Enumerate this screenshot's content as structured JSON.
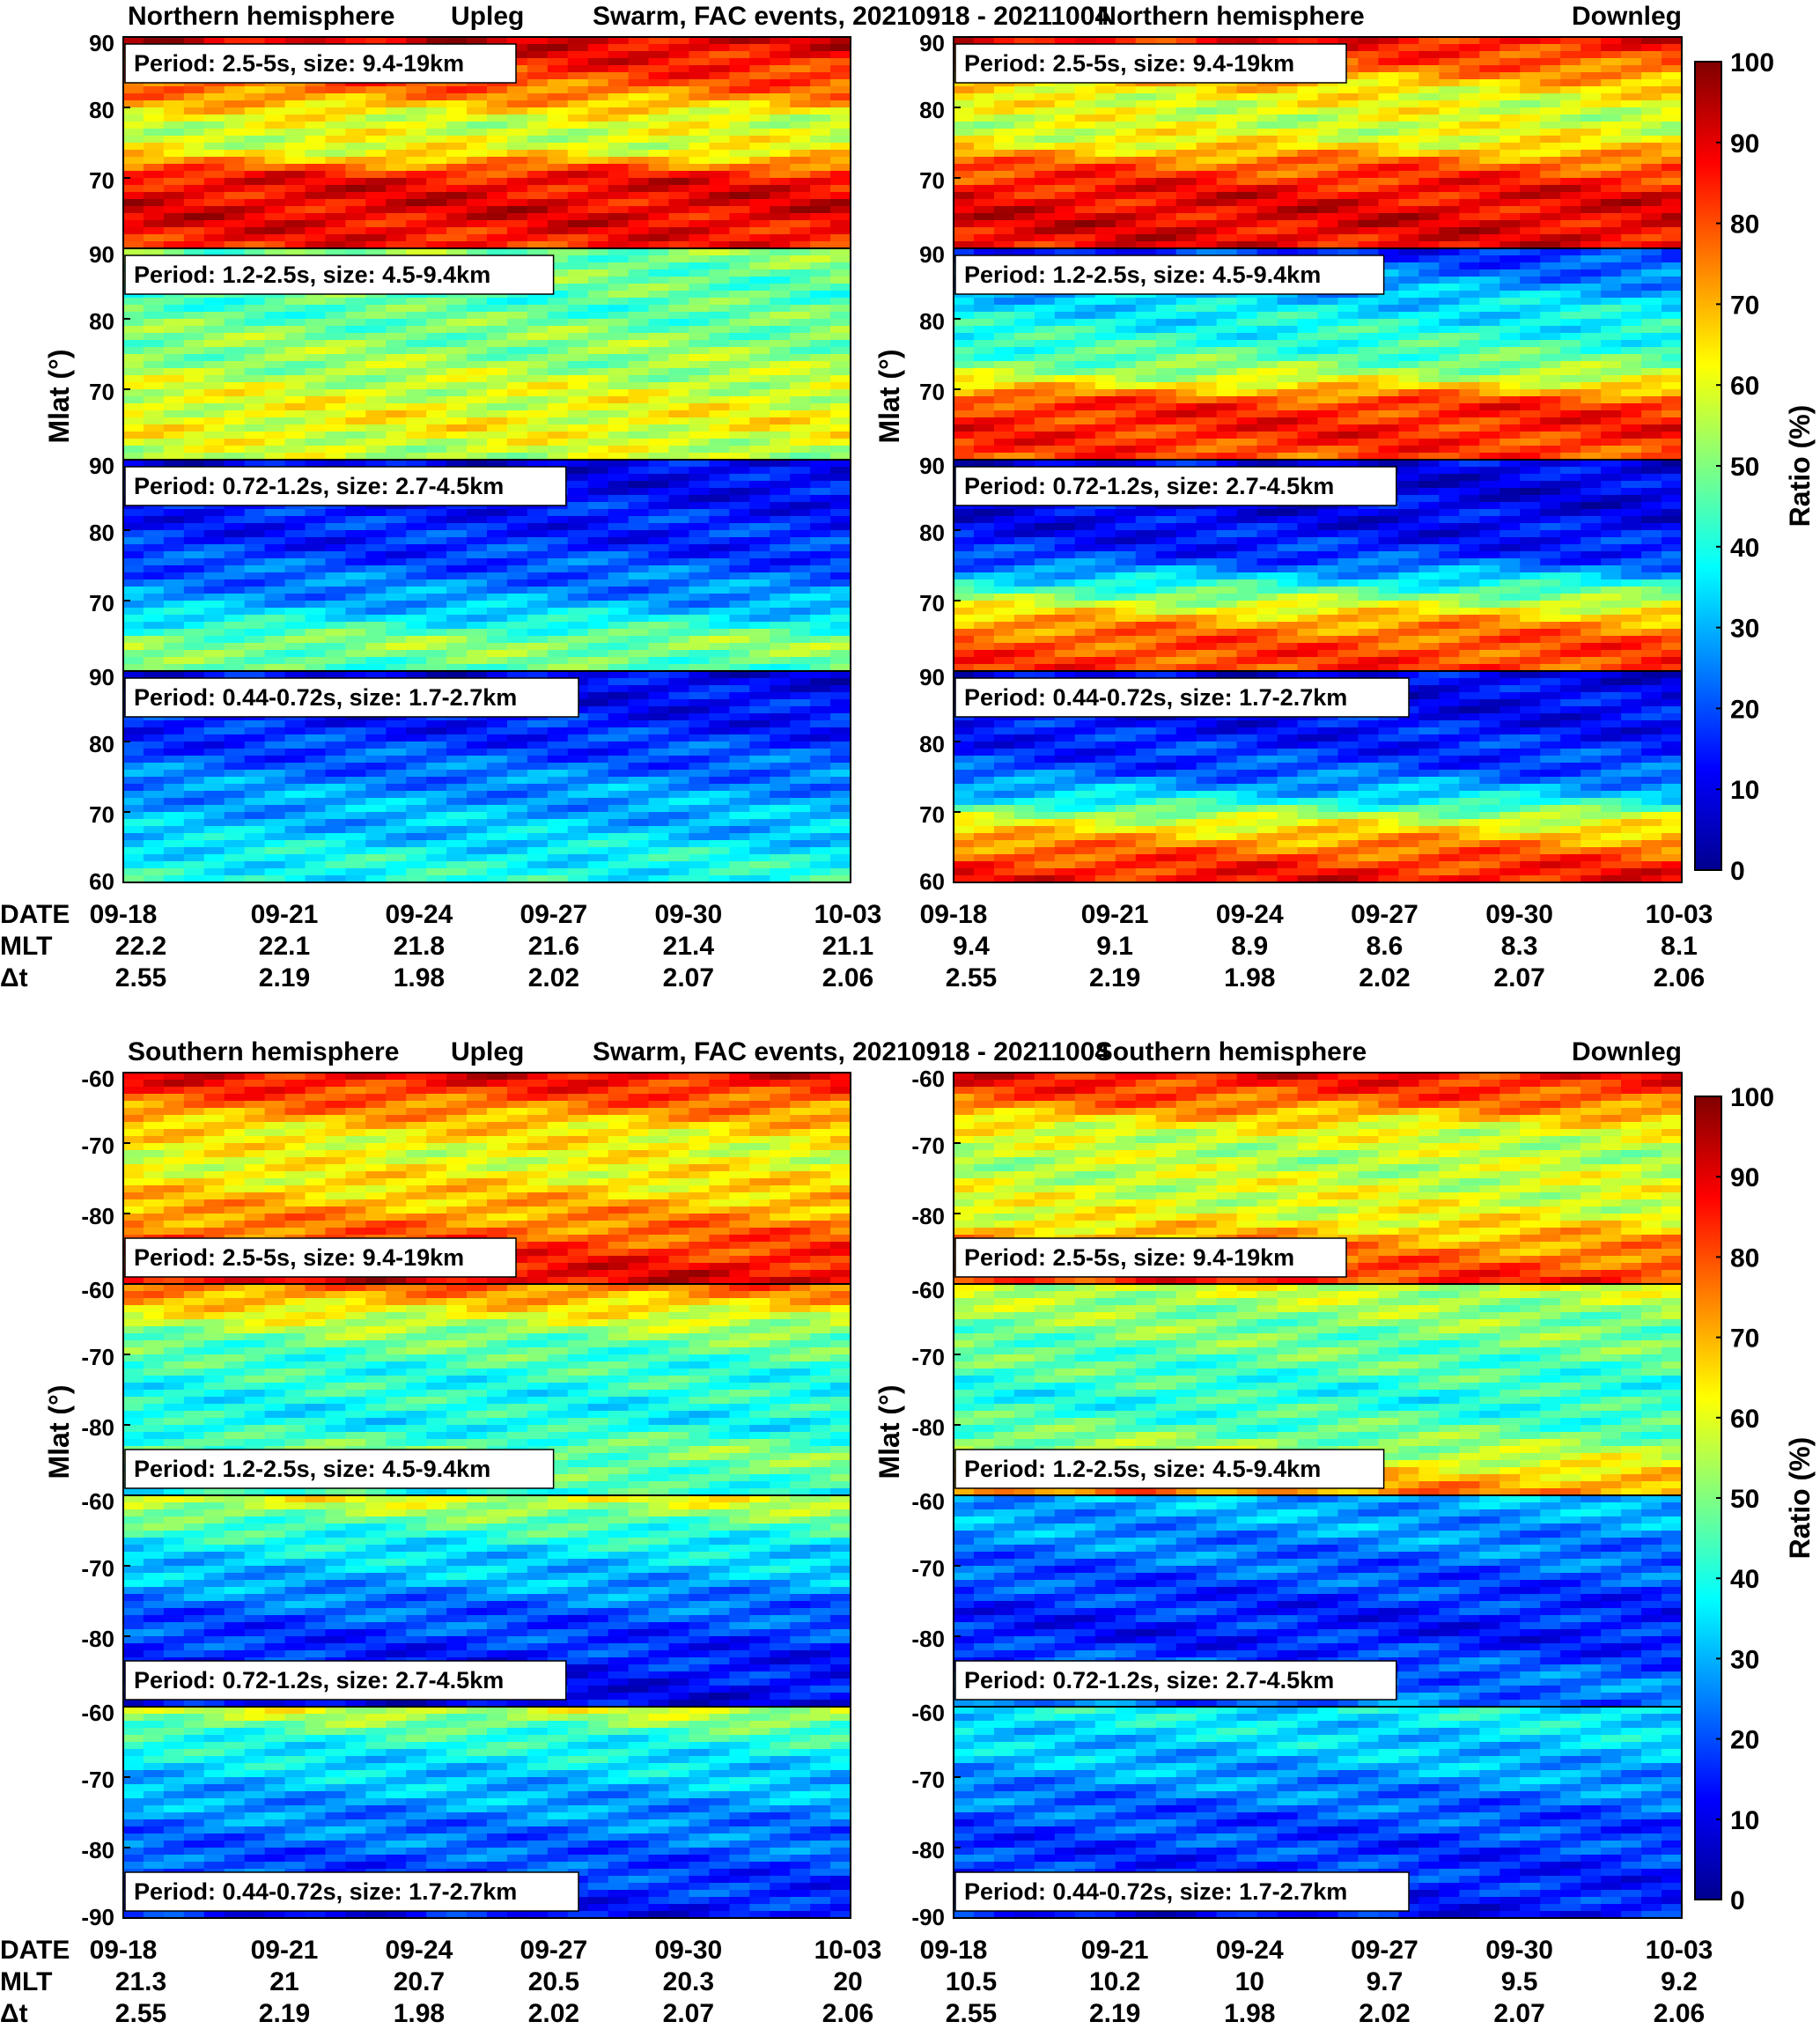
{
  "figure": {
    "title": "Swarm, FAC events, 20210918 - 20211004",
    "ylabel": "Mlat (°)",
    "colorbar": {
      "label": "Ratio (%)",
      "ticks": [
        0,
        10,
        20,
        30,
        40,
        50,
        60,
        70,
        80,
        90,
        100
      ]
    },
    "row_labels": [
      "DATE",
      "MLT",
      "Δt"
    ],
    "dates": [
      "09-18",
      "09-21",
      "09-24",
      "09-27",
      "09-30",
      "10-03"
    ],
    "dt": [
      "2.55",
      "2.19",
      "1.98",
      "2.02",
      "2.07",
      "2.06"
    ],
    "period_labels": [
      "Period: 2.5-5s, size: 9.4-19km",
      "Period: 1.2-2.5s, size: 4.5-9.4km",
      "Period: 0.72-1.2s, size: 2.7-4.5km",
      "Period: 0.44-0.72s, size: 1.7-2.7km"
    ],
    "colormap": [
      "#00008f",
      "#0000ff",
      "#0080ff",
      "#00ffff",
      "#80ff80",
      "#ffff00",
      "#ff8000",
      "#ff0000",
      "#800000"
    ]
  },
  "chart_data": [
    {
      "type": "heatmap",
      "hemisphere": "Northern hemisphere",
      "leg": "Upleg",
      "mlt": [
        "22.2",
        "22.1",
        "21.8",
        "21.6",
        "21.4",
        "21.1"
      ],
      "yticks": [
        "90",
        "80",
        "70",
        "60"
      ],
      "ylim": [
        60,
        90
      ],
      "panels": [
        {
          "period": "2.5-5s",
          "size": "9.4-19km",
          "profile": [
            [
              60,
              85
            ],
            [
              65,
              90
            ],
            [
              70,
              88
            ],
            [
              74,
              60
            ],
            [
              78,
              58
            ],
            [
              82,
              75
            ],
            [
              86,
              85
            ],
            [
              90,
              92
            ]
          ]
        },
        {
          "period": "1.2-2.5s",
          "size": "4.5-9.4km",
          "profile": [
            [
              60,
              55
            ],
            [
              65,
              62
            ],
            [
              70,
              58
            ],
            [
              74,
              52
            ],
            [
              78,
              50
            ],
            [
              82,
              45
            ],
            [
              86,
              48
            ],
            [
              90,
              50
            ]
          ]
        },
        {
          "period": "0.72-1.2s",
          "size": "2.7-4.5km",
          "profile": [
            [
              60,
              45
            ],
            [
              64,
              52
            ],
            [
              67,
              38
            ],
            [
              70,
              28
            ],
            [
              74,
              22
            ],
            [
              78,
              16
            ],
            [
              82,
              15
            ],
            [
              86,
              12
            ],
            [
              90,
              10
            ]
          ]
        },
        {
          "period": "0.44-0.72s",
          "size": "1.7-2.7km",
          "profile": [
            [
              60,
              40
            ],
            [
              64,
              38
            ],
            [
              67,
              32
            ],
            [
              70,
              30
            ],
            [
              74,
              26
            ],
            [
              78,
              20
            ],
            [
              82,
              15
            ],
            [
              86,
              12
            ],
            [
              90,
              10
            ]
          ]
        }
      ]
    },
    {
      "type": "heatmap",
      "hemisphere": "Northern hemisphere",
      "leg": "Downleg",
      "mlt": [
        "9.4",
        "9.1",
        "8.9",
        "8.6",
        "8.3",
        "8.1"
      ],
      "yticks": [
        "90",
        "80",
        "70",
        "60"
      ],
      "ylim": [
        60,
        90
      ],
      "panels": [
        {
          "period": "2.5-5s",
          "size": "9.4-19km",
          "profile": [
            [
              60,
              88
            ],
            [
              64,
              90
            ],
            [
              68,
              88
            ],
            [
              72,
              78
            ],
            [
              75,
              62
            ],
            [
              78,
              58
            ],
            [
              82,
              62
            ],
            [
              86,
              78
            ],
            [
              90,
              88
            ]
          ]
        },
        {
          "period": "1.2-2.5s",
          "size": "4.5-9.4km",
          "profile": [
            [
              60,
              80
            ],
            [
              64,
              85
            ],
            [
              68,
              83
            ],
            [
              72,
              55
            ],
            [
              75,
              45
            ],
            [
              78,
              40
            ],
            [
              82,
              35
            ],
            [
              86,
              25
            ],
            [
              90,
              15
            ]
          ]
        },
        {
          "period": "0.72-1.2s",
          "size": "2.7-4.5km",
          "profile": [
            [
              60,
              82
            ],
            [
              64,
              80
            ],
            [
              67,
              72
            ],
            [
              70,
              55
            ],
            [
              73,
              35
            ],
            [
              76,
              18
            ],
            [
              80,
              12
            ],
            [
              84,
              10
            ],
            [
              90,
              10
            ]
          ]
        },
        {
          "period": "0.44-0.72s",
          "size": "1.7-2.7km",
          "profile": [
            [
              60,
              88
            ],
            [
              63,
              82
            ],
            [
              66,
              72
            ],
            [
              69,
              58
            ],
            [
              72,
              35
            ],
            [
              76,
              20
            ],
            [
              80,
              15
            ],
            [
              84,
              12
            ],
            [
              90,
              10
            ]
          ]
        }
      ]
    },
    {
      "type": "heatmap",
      "hemisphere": "Southern hemisphere",
      "leg": "Upleg",
      "mlt": [
        "21.3",
        "21",
        "20.7",
        "20.5",
        "20.3",
        "20"
      ],
      "yticks": [
        "-60",
        "-70",
        "-80",
        "-90"
      ],
      "ylim": [
        -90,
        -60
      ],
      "panels": [
        {
          "period": "2.5-5s",
          "size": "9.4-19km",
          "profile": [
            [
              -60,
              90
            ],
            [
              -64,
              78
            ],
            [
              -68,
              65
            ],
            [
              -72,
              60
            ],
            [
              -76,
              65
            ],
            [
              -80,
              72
            ],
            [
              -84,
              80
            ],
            [
              -88,
              88
            ],
            [
              -90,
              90
            ]
          ]
        },
        {
          "period": "1.2-2.5s",
          "size": "4.5-9.4km",
          "profile": [
            [
              -60,
              78
            ],
            [
              -64,
              62
            ],
            [
              -68,
              48
            ],
            [
              -72,
              42
            ],
            [
              -76,
              40
            ],
            [
              -80,
              38
            ],
            [
              -84,
              50
            ],
            [
              -88,
              45
            ],
            [
              -90,
              40
            ]
          ]
        },
        {
          "period": "0.72-1.2s",
          "size": "2.7-4.5km",
          "profile": [
            [
              -60,
              62
            ],
            [
              -64,
              45
            ],
            [
              -68,
              35
            ],
            [
              -72,
              30
            ],
            [
              -76,
              22
            ],
            [
              -80,
              18
            ],
            [
              -84,
              14
            ],
            [
              -88,
              12
            ],
            [
              -90,
              10
            ]
          ]
        },
        {
          "period": "0.44-0.72s",
          "size": "1.7-2.7km",
          "profile": [
            [
              -60,
              60
            ],
            [
              -64,
              42
            ],
            [
              -68,
              35
            ],
            [
              -72,
              30
            ],
            [
              -76,
              25
            ],
            [
              -80,
              22
            ],
            [
              -84,
              18
            ],
            [
              -88,
              15
            ],
            [
              -90,
              12
            ]
          ]
        }
      ]
    },
    {
      "type": "heatmap",
      "hemisphere": "Southern hemisphere",
      "leg": "Downleg",
      "mlt": [
        "10.5",
        "10.2",
        "10",
        "9.7",
        "9.5",
        "9.2"
      ],
      "yticks": [
        "-60",
        "-70",
        "-80",
        "-90"
      ],
      "ylim": [
        -90,
        -60
      ],
      "panels": [
        {
          "period": "2.5-5s",
          "size": "9.4-19km",
          "profile": [
            [
              -60,
              88
            ],
            [
              -64,
              78
            ],
            [
              -68,
              60
            ],
            [
              -72,
              55
            ],
            [
              -76,
              58
            ],
            [
              -80,
              60
            ],
            [
              -84,
              72
            ],
            [
              -88,
              80
            ],
            [
              -90,
              85
            ]
          ]
        },
        {
          "period": "1.2-2.5s",
          "size": "4.5-9.4km",
          "profile": [
            [
              -60,
              58
            ],
            [
              -64,
              52
            ],
            [
              -68,
              48
            ],
            [
              -72,
              45
            ],
            [
              -76,
              40
            ],
            [
              -80,
              45
            ],
            [
              -84,
              55
            ],
            [
              -88,
              70
            ],
            [
              -90,
              75
            ]
          ]
        },
        {
          "period": "0.72-1.2s",
          "size": "2.7-4.5km",
          "profile": [
            [
              -60,
              30
            ],
            [
              -64,
              28
            ],
            [
              -68,
              24
            ],
            [
              -72,
              20
            ],
            [
              -76,
              16
            ],
            [
              -80,
              14
            ],
            [
              -84,
              20
            ],
            [
              -88,
              25
            ],
            [
              -90,
              22
            ]
          ]
        },
        {
          "period": "0.44-0.72s",
          "size": "1.7-2.7km",
          "profile": [
            [
              -60,
              38
            ],
            [
              -64,
              34
            ],
            [
              -68,
              30
            ],
            [
              -72,
              25
            ],
            [
              -76,
              20
            ],
            [
              -80,
              18
            ],
            [
              -84,
              16
            ],
            [
              -88,
              14
            ],
            [
              -90,
              12
            ]
          ]
        }
      ]
    }
  ]
}
